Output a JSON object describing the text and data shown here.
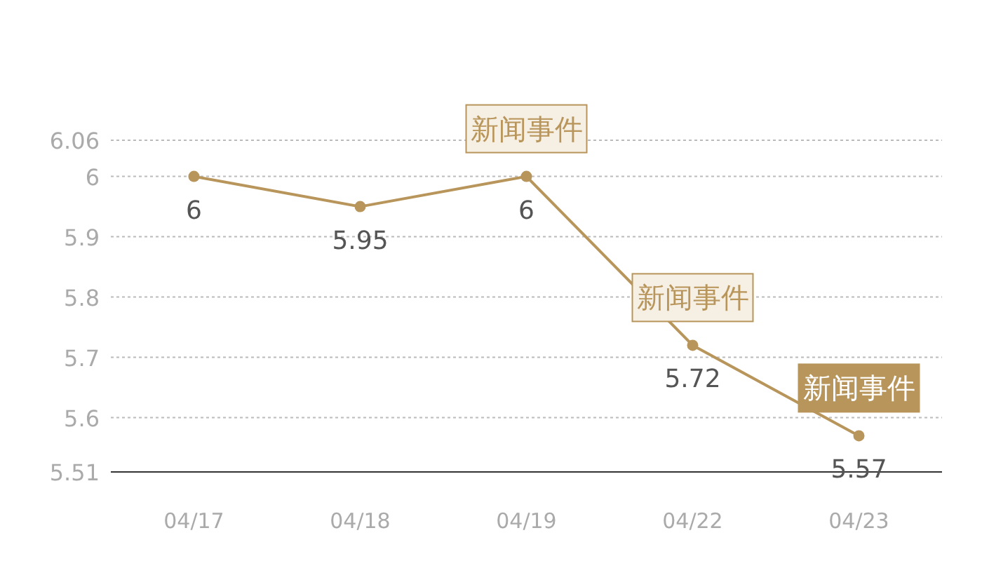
{
  "chart_data": {
    "type": "line",
    "categories": [
      "04/17",
      "04/18",
      "04/19",
      "04/22",
      "04/23"
    ],
    "series": [
      {
        "color": "#b8955a",
        "values": [
          6,
          5.95,
          6,
          5.72,
          5.57
        ]
      }
    ],
    "ylim": [
      5.51,
      6.06
    ],
    "yticks": [
      5.51,
      5.6,
      5.7,
      5.8,
      5.9,
      6,
      6.06
    ],
    "grid": "y",
    "marker": "circle",
    "line_style": "solid",
    "data_labels": true,
    "annotations": [
      {
        "text": "新闻事件",
        "x": "04/19",
        "y": 6
      },
      {
        "text": "新闻事件",
        "x": "04/22",
        "y": 5.72
      },
      {
        "text": "新闻事件",
        "x": "04/23",
        "y": 5.57
      }
    ]
  }
}
